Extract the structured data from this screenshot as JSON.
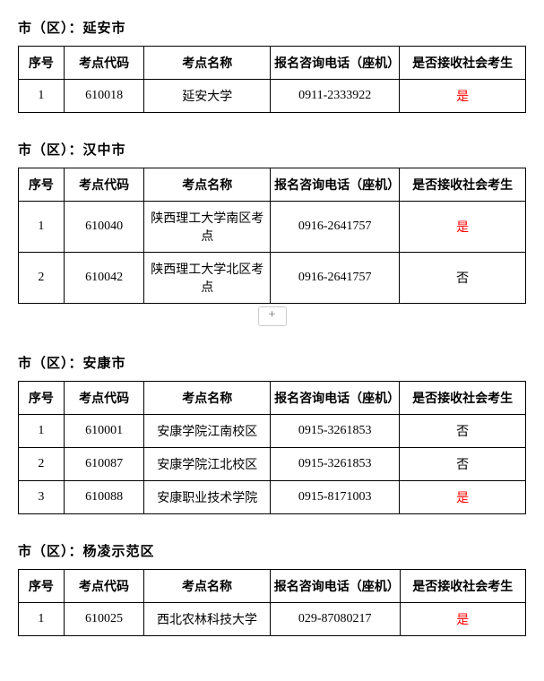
{
  "column_headers": {
    "seq": "序号",
    "code": "考点代码",
    "name": "考点名称",
    "phone": "报名咨询电话（座机）",
    "accept": "是否接收社会考生"
  },
  "section_prefix": "市（区）：",
  "plus_label": "+",
  "sections": [
    {
      "region": "延安市",
      "show_plus": false,
      "rows": [
        {
          "seq": "1",
          "code": "610018",
          "name": "延安大学",
          "phone": "0911-2333922",
          "accept": "是",
          "accept_red": true
        }
      ]
    },
    {
      "region": "汉中市",
      "show_plus": true,
      "rows": [
        {
          "seq": "1",
          "code": "610040",
          "name": "陕西理工大学南区考点",
          "phone": "0916-2641757",
          "accept": "是",
          "accept_red": true
        },
        {
          "seq": "2",
          "code": "610042",
          "name": "陕西理工大学北区考点",
          "phone": "0916-2641757",
          "accept": "否",
          "accept_red": false
        }
      ]
    },
    {
      "region": "安康市",
      "show_plus": false,
      "rows": [
        {
          "seq": "1",
          "code": "610001",
          "name": "安康学院江南校区",
          "phone": "0915-3261853",
          "accept": "否",
          "accept_red": false
        },
        {
          "seq": "2",
          "code": "610087",
          "name": "安康学院江北校区",
          "phone": "0915-3261853",
          "accept": "否",
          "accept_red": false
        },
        {
          "seq": "3",
          "code": "610088",
          "name": "安康职业技术学院",
          "phone": "0915-8171003",
          "accept": "是",
          "accept_red": true
        }
      ]
    },
    {
      "region": "杨凌示范区",
      "show_plus": false,
      "rows": [
        {
          "seq": "1",
          "code": "610025",
          "name": "西北农林科技大学",
          "phone": "029-87080217",
          "accept": "是",
          "accept_red": true
        }
      ]
    }
  ],
  "styles": {
    "red_color": "#ff0000",
    "border_color": "#000000",
    "background_color": "#ffffff"
  }
}
